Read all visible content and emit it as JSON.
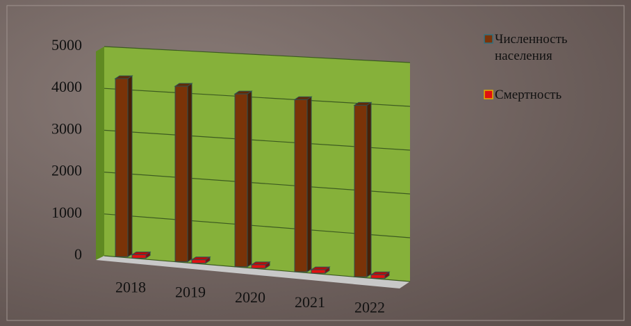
{
  "chart_data": {
    "type": "bar",
    "categories": [
      "2018",
      "2019",
      "2020",
      "2021",
      "2022"
    ],
    "series": [
      {
        "name": "Численность населения",
        "color": "#7a3308",
        "values": [
          4250,
          4150,
          4050,
          4000,
          3950
        ]
      },
      {
        "name": "Смертность",
        "color": "#e01010",
        "values": [
          80,
          80,
          80,
          80,
          80
        ]
      }
    ],
    "ylim": [
      0,
      5000
    ],
    "yticks": [
      0,
      1000,
      2000,
      3000,
      4000,
      5000
    ],
    "grid": true,
    "legend": "right"
  }
}
